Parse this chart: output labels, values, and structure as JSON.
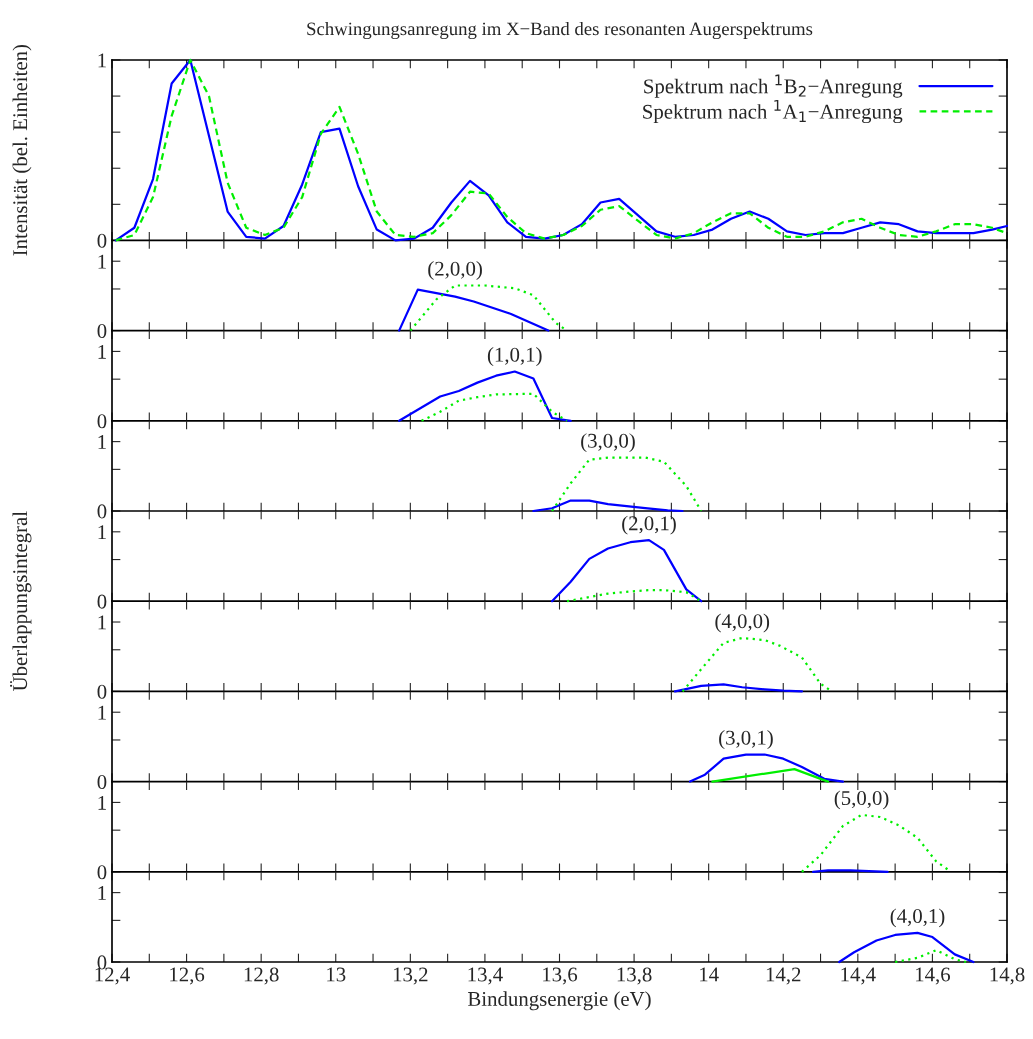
{
  "chart_data": [
    {
      "type": "line",
      "title": "Schwingungsanregung im X−Band des resonanten Augerspektrums",
      "ylabel": "Intensität (bel. Einheiten)",
      "xlim": [
        12.4,
        14.8
      ],
      "ylim": [
        0,
        1
      ],
      "tick_labels": "y",
      "legend": "top right",
      "xticks": [
        {
          "value": 12.4,
          "label": null
        },
        {
          "value": 12.5,
          "label": null
        },
        {
          "value": 12.6,
          "label": null
        },
        {
          "value": 12.7,
          "label": null
        },
        {
          "value": 12.8,
          "label": null
        },
        {
          "value": 12.9,
          "label": null
        },
        {
          "value": 13,
          "label": null
        },
        {
          "value": 13.1,
          "label": null
        },
        {
          "value": 13.2,
          "label": null
        },
        {
          "value": 13.3,
          "label": null
        },
        {
          "value": 13.4,
          "label": null
        },
        {
          "value": 13.5,
          "label": null
        },
        {
          "value": 13.6,
          "label": null
        },
        {
          "value": 13.7,
          "label": null
        },
        {
          "value": 13.8,
          "label": null
        },
        {
          "value": 13.9,
          "label": null
        },
        {
          "value": 14,
          "label": null
        },
        {
          "value": 14.1,
          "label": null
        },
        {
          "value": 14.2,
          "label": null
        },
        {
          "value": 14.3,
          "label": null
        },
        {
          "value": 14.4,
          "label": null
        },
        {
          "value": 14.5,
          "label": null
        },
        {
          "value": 14.6,
          "label": null
        },
        {
          "value": 14.7,
          "label": null
        },
        {
          "value": 14.8,
          "label": null
        }
      ],
      "yticks": [
        0,
        {
          "value": 0.2,
          "label": null
        },
        {
          "value": 0.4,
          "label": null
        },
        {
          "value": 0.6,
          "label": null
        },
        {
          "value": 0.8,
          "label": null
        },
        1
      ],
      "series": [
        {
          "name": "Spektrum nach $^{1}$B$_{2}$−Anregung",
          "color": "#0000ff",
          "line_style": "solid",
          "x": [
            12.41,
            12.46,
            12.51,
            12.56,
            12.61,
            12.66,
            12.71,
            12.76,
            12.81,
            12.86,
            12.91,
            12.96,
            13.01,
            13.06,
            13.11,
            13.16,
            13.21,
            13.26,
            13.31,
            13.36,
            13.41,
            13.46,
            13.51,
            13.56,
            13.61,
            13.66,
            13.71,
            13.76,
            13.81,
            13.86,
            13.91,
            13.96,
            14.01,
            14.06,
            14.11,
            14.16,
            14.21,
            14.26,
            14.31,
            14.36,
            14.41,
            14.46,
            14.51,
            14.56,
            14.61,
            14.66,
            14.71,
            14.76,
            14.8
          ],
          "values": [
            0,
            0.07,
            0.34,
            0.87,
            1.0,
            0.58,
            0.16,
            0.02,
            0.01,
            0.08,
            0.31,
            0.6,
            0.62,
            0.3,
            0.06,
            0,
            0.01,
            0.07,
            0.21,
            0.33,
            0.25,
            0.1,
            0.02,
            0.01,
            0.03,
            0.09,
            0.21,
            0.23,
            0.14,
            0.05,
            0.02,
            0.03,
            0.06,
            0.12,
            0.16,
            0.12,
            0.05,
            0.03,
            0.04,
            0.04,
            0.07,
            0.1,
            0.09,
            0.05,
            0.04,
            0.04,
            0.04,
            0.06,
            0.08
          ]
        },
        {
          "name": "Spektrum nach $^{1}$A$_{1}$−Anregung",
          "color": "#00ee00",
          "line_style": "dashed",
          "x": [
            12.41,
            12.46,
            12.51,
            12.56,
            12.61,
            12.66,
            12.71,
            12.76,
            12.81,
            12.86,
            12.91,
            12.96,
            13.01,
            13.06,
            13.11,
            13.16,
            13.21,
            13.26,
            13.31,
            13.36,
            13.41,
            13.46,
            13.51,
            13.56,
            13.61,
            13.66,
            13.71,
            13.76,
            13.81,
            13.86,
            13.91,
            13.96,
            14.01,
            14.06,
            14.11,
            14.16,
            14.21,
            14.26,
            14.31,
            14.36,
            14.41,
            14.46,
            14.51,
            14.56,
            14.61,
            14.66,
            14.71,
            14.76,
            14.8
          ],
          "values": [
            0,
            0.03,
            0.24,
            0.69,
            1.0,
            0.8,
            0.32,
            0.07,
            0.03,
            0.07,
            0.24,
            0.59,
            0.74,
            0.48,
            0.16,
            0.03,
            0.02,
            0.04,
            0.14,
            0.27,
            0.26,
            0.13,
            0.04,
            0.01,
            0.03,
            0.08,
            0.17,
            0.19,
            0.11,
            0.03,
            0.01,
            0.04,
            0.1,
            0.15,
            0.15,
            0.07,
            0.02,
            0.02,
            0.05,
            0.1,
            0.12,
            0.07,
            0.03,
            0.02,
            0.05,
            0.09,
            0.09,
            0.07,
            0.04
          ]
        }
      ]
    },
    {
      "type": "line",
      "xlim": [
        12.4,
        14.8
      ],
      "ylim": [
        0,
        1.3
      ],
      "tick_labels": "y",
      "xticks": [
        {
          "value": 12.4,
          "label": null
        },
        {
          "value": 12.5,
          "label": null
        },
        {
          "value": 12.6,
          "label": null
        },
        {
          "value": 12.7,
          "label": null
        },
        {
          "value": 12.8,
          "label": null
        },
        {
          "value": 12.9,
          "label": null
        },
        {
          "value": 13,
          "label": null
        },
        {
          "value": 13.1,
          "label": null
        },
        {
          "value": 13.2,
          "label": null
        },
        {
          "value": 13.3,
          "label": null
        },
        {
          "value": 13.4,
          "label": null
        },
        {
          "value": 13.5,
          "label": null
        },
        {
          "value": 13.6,
          "label": null
        },
        {
          "value": 13.7,
          "label": null
        },
        {
          "value": 13.8,
          "label": null
        },
        {
          "value": 13.9,
          "label": null
        },
        {
          "value": 14,
          "label": null
        },
        {
          "value": 14.1,
          "label": null
        },
        {
          "value": 14.2,
          "label": null
        },
        {
          "value": 14.3,
          "label": null
        },
        {
          "value": 14.4,
          "label": null
        },
        {
          "value": 14.5,
          "label": null
        },
        {
          "value": 14.6,
          "label": null
        },
        {
          "value": 14.7,
          "label": null
        },
        {
          "value": 14.8,
          "label": null
        }
      ],
      "yticks": [
        0,
        {
          "value": 0.6,
          "label": null
        },
        1
      ],
      "annotations": [
        "(2,0,0)"
      ],
      "series": [
        {
          "color": "#0000ff",
          "line_style": "solid",
          "x": [
            13.17,
            13.22,
            13.32,
            13.37,
            13.47,
            13.57
          ],
          "values": [
            0,
            0.59,
            0.49,
            0.42,
            0.24,
            0
          ]
        },
        {
          "color": "#00ee00",
          "line_style": "dotted",
          "x": [
            13.2,
            13.27,
            13.32,
            13.4,
            13.48,
            13.53,
            13.59,
            13.62
          ],
          "values": [
            0,
            0.45,
            0.65,
            0.65,
            0.61,
            0.51,
            0.11,
            0
          ]
        }
      ]
    },
    {
      "type": "line",
      "xlim": [
        12.4,
        14.8
      ],
      "ylim": [
        0,
        1.3
      ],
      "tick_labels": "y",
      "xticks": [
        {
          "value": 12.4,
          "label": null
        },
        {
          "value": 12.5,
          "label": null
        },
        {
          "value": 12.6,
          "label": null
        },
        {
          "value": 12.7,
          "label": null
        },
        {
          "value": 12.8,
          "label": null
        },
        {
          "value": 12.9,
          "label": null
        },
        {
          "value": 13,
          "label": null
        },
        {
          "value": 13.1,
          "label": null
        },
        {
          "value": 13.2,
          "label": null
        },
        {
          "value": 13.3,
          "label": null
        },
        {
          "value": 13.4,
          "label": null
        },
        {
          "value": 13.5,
          "label": null
        },
        {
          "value": 13.6,
          "label": null
        },
        {
          "value": 13.7,
          "label": null
        },
        {
          "value": 13.8,
          "label": null
        },
        {
          "value": 13.9,
          "label": null
        },
        {
          "value": 14,
          "label": null
        },
        {
          "value": 14.1,
          "label": null
        },
        {
          "value": 14.2,
          "label": null
        },
        {
          "value": 14.3,
          "label": null
        },
        {
          "value": 14.4,
          "label": null
        },
        {
          "value": 14.5,
          "label": null
        },
        {
          "value": 14.6,
          "label": null
        },
        {
          "value": 14.7,
          "label": null
        },
        {
          "value": 14.8,
          "label": null
        }
      ],
      "yticks": [
        0,
        {
          "value": 0.6,
          "label": null
        },
        1
      ],
      "annotations": [
        "(1,0,1)"
      ],
      "series": [
        {
          "color": "#0000ff",
          "line_style": "solid",
          "x": [
            13.17,
            13.28,
            13.33,
            13.38,
            13.43,
            13.48,
            13.53,
            13.58,
            13.63
          ],
          "values": [
            0,
            0.35,
            0.43,
            0.55,
            0.65,
            0.71,
            0.61,
            0.04,
            0
          ]
        },
        {
          "color": "#00ee00",
          "line_style": "dotted",
          "x": [
            13.23,
            13.28,
            13.33,
            13.38,
            13.43,
            13.53,
            13.58,
            13.62
          ],
          "values": [
            0,
            0.13,
            0.29,
            0.34,
            0.38,
            0.39,
            0.13,
            0
          ]
        }
      ]
    },
    {
      "type": "line",
      "xlim": [
        12.4,
        14.8
      ],
      "ylim": [
        0,
        1.3
      ],
      "tick_labels": "y",
      "xticks": [
        {
          "value": 12.4,
          "label": null
        },
        {
          "value": 12.5,
          "label": null
        },
        {
          "value": 12.6,
          "label": null
        },
        {
          "value": 12.7,
          "label": null
        },
        {
          "value": 12.8,
          "label": null
        },
        {
          "value": 12.9,
          "label": null
        },
        {
          "value": 13,
          "label": null
        },
        {
          "value": 13.1,
          "label": null
        },
        {
          "value": 13.2,
          "label": null
        },
        {
          "value": 13.3,
          "label": null
        },
        {
          "value": 13.4,
          "label": null
        },
        {
          "value": 13.5,
          "label": null
        },
        {
          "value": 13.6,
          "label": null
        },
        {
          "value": 13.7,
          "label": null
        },
        {
          "value": 13.8,
          "label": null
        },
        {
          "value": 13.9,
          "label": null
        },
        {
          "value": 14,
          "label": null
        },
        {
          "value": 14.1,
          "label": null
        },
        {
          "value": 14.2,
          "label": null
        },
        {
          "value": 14.3,
          "label": null
        },
        {
          "value": 14.4,
          "label": null
        },
        {
          "value": 14.5,
          "label": null
        },
        {
          "value": 14.6,
          "label": null
        },
        {
          "value": 14.7,
          "label": null
        },
        {
          "value": 14.8,
          "label": null
        }
      ],
      "yticks": [
        0,
        {
          "value": 0.6,
          "label": null
        },
        1
      ],
      "annotations": [
        "(3,0,0)"
      ],
      "series": [
        {
          "color": "#0000ff",
          "line_style": "solid",
          "x": [
            13.53,
            13.58,
            13.63,
            13.68,
            13.73,
            13.78,
            13.83,
            13.89,
            13.93
          ],
          "values": [
            0,
            0.04,
            0.15,
            0.15,
            0.1,
            0.07,
            0.04,
            0.01,
            0
          ]
        },
        {
          "color": "#00ee00",
          "line_style": "dotted",
          "x": [
            13.58,
            13.63,
            13.68,
            13.73,
            13.83,
            13.88,
            13.94,
            13.98
          ],
          "values": [
            0,
            0.4,
            0.74,
            0.77,
            0.77,
            0.71,
            0.36,
            0
          ]
        }
      ]
    },
    {
      "type": "line",
      "ylabel": "Überlappungsintegral",
      "xlim": [
        12.4,
        14.8
      ],
      "ylim": [
        0,
        1.3
      ],
      "tick_labels": "y",
      "xticks": [
        {
          "value": 12.4,
          "label": null
        },
        {
          "value": 12.5,
          "label": null
        },
        {
          "value": 12.6,
          "label": null
        },
        {
          "value": 12.7,
          "label": null
        },
        {
          "value": 12.8,
          "label": null
        },
        {
          "value": 12.9,
          "label": null
        },
        {
          "value": 13,
          "label": null
        },
        {
          "value": 13.1,
          "label": null
        },
        {
          "value": 13.2,
          "label": null
        },
        {
          "value": 13.3,
          "label": null
        },
        {
          "value": 13.4,
          "label": null
        },
        {
          "value": 13.5,
          "label": null
        },
        {
          "value": 13.6,
          "label": null
        },
        {
          "value": 13.7,
          "label": null
        },
        {
          "value": 13.8,
          "label": null
        },
        {
          "value": 13.9,
          "label": null
        },
        {
          "value": 14,
          "label": null
        },
        {
          "value": 14.1,
          "label": null
        },
        {
          "value": 14.2,
          "label": null
        },
        {
          "value": 14.3,
          "label": null
        },
        {
          "value": 14.4,
          "label": null
        },
        {
          "value": 14.5,
          "label": null
        },
        {
          "value": 14.6,
          "label": null
        },
        {
          "value": 14.7,
          "label": null
        },
        {
          "value": 14.8,
          "label": null
        }
      ],
      "yticks": [
        0,
        {
          "value": 0.6,
          "label": null
        },
        1
      ],
      "annotations": [
        "(2,0,1)"
      ],
      "series": [
        {
          "color": "#0000ff",
          "line_style": "solid",
          "x": [
            13.58,
            13.63,
            13.68,
            13.73,
            13.79,
            13.84,
            13.88,
            13.94,
            13.98
          ],
          "values": [
            0,
            0.28,
            0.61,
            0.76,
            0.85,
            0.88,
            0.74,
            0.17,
            0
          ]
        },
        {
          "color": "#00ee00",
          "line_style": "dotted",
          "x": [
            13.62,
            13.73,
            13.79,
            13.84,
            13.88,
            13.94,
            13.98
          ],
          "values": [
            0,
            0.11,
            0.14,
            0.16,
            0.16,
            0.13,
            0
          ]
        }
      ]
    },
    {
      "type": "line",
      "xlim": [
        12.4,
        14.8
      ],
      "ylim": [
        0,
        1.3
      ],
      "tick_labels": "y",
      "xticks": [
        {
          "value": 12.4,
          "label": null
        },
        {
          "value": 12.5,
          "label": null
        },
        {
          "value": 12.6,
          "label": null
        },
        {
          "value": 12.7,
          "label": null
        },
        {
          "value": 12.8,
          "label": null
        },
        {
          "value": 12.9,
          "label": null
        },
        {
          "value": 13,
          "label": null
        },
        {
          "value": 13.1,
          "label": null
        },
        {
          "value": 13.2,
          "label": null
        },
        {
          "value": 13.3,
          "label": null
        },
        {
          "value": 13.4,
          "label": null
        },
        {
          "value": 13.5,
          "label": null
        },
        {
          "value": 13.6,
          "label": null
        },
        {
          "value": 13.7,
          "label": null
        },
        {
          "value": 13.8,
          "label": null
        },
        {
          "value": 13.9,
          "label": null
        },
        {
          "value": 14,
          "label": null
        },
        {
          "value": 14.1,
          "label": null
        },
        {
          "value": 14.2,
          "label": null
        },
        {
          "value": 14.3,
          "label": null
        },
        {
          "value": 14.4,
          "label": null
        },
        {
          "value": 14.5,
          "label": null
        },
        {
          "value": 14.6,
          "label": null
        },
        {
          "value": 14.7,
          "label": null
        },
        {
          "value": 14.8,
          "label": null
        }
      ],
      "yticks": [
        0,
        {
          "value": 0.6,
          "label": null
        },
        1
      ],
      "annotations": [
        "(4,0,0)"
      ],
      "series": [
        {
          "color": "#0000ff",
          "line_style": "solid",
          "x": [
            13.91,
            13.98,
            14.04,
            14.09,
            14.15,
            14.2,
            14.25
          ],
          "values": [
            0,
            0.08,
            0.1,
            0.06,
            0.03,
            0.01,
            0
          ]
        },
        {
          "color": "#00ee00",
          "line_style": "dotted",
          "x": [
            13.93,
            13.98,
            14.04,
            14.09,
            14.15,
            14.19,
            14.25,
            14.3,
            14.33
          ],
          "values": [
            0,
            0.32,
            0.7,
            0.77,
            0.74,
            0.66,
            0.49,
            0.11,
            0
          ]
        }
      ]
    },
    {
      "type": "line",
      "xlim": [
        12.4,
        14.8
      ],
      "ylim": [
        0,
        1.3
      ],
      "tick_labels": "y",
      "xticks": [
        {
          "value": 12.4,
          "label": null
        },
        {
          "value": 12.5,
          "label": null
        },
        {
          "value": 12.6,
          "label": null
        },
        {
          "value": 12.7,
          "label": null
        },
        {
          "value": 12.8,
          "label": null
        },
        {
          "value": 12.9,
          "label": null
        },
        {
          "value": 13,
          "label": null
        },
        {
          "value": 13.1,
          "label": null
        },
        {
          "value": 13.2,
          "label": null
        },
        {
          "value": 13.3,
          "label": null
        },
        {
          "value": 13.4,
          "label": null
        },
        {
          "value": 13.5,
          "label": null
        },
        {
          "value": 13.6,
          "label": null
        },
        {
          "value": 13.7,
          "label": null
        },
        {
          "value": 13.8,
          "label": null
        },
        {
          "value": 13.9,
          "label": null
        },
        {
          "value": 14,
          "label": null
        },
        {
          "value": 14.1,
          "label": null
        },
        {
          "value": 14.2,
          "label": null
        },
        {
          "value": 14.3,
          "label": null
        },
        {
          "value": 14.4,
          "label": null
        },
        {
          "value": 14.5,
          "label": null
        },
        {
          "value": 14.6,
          "label": null
        },
        {
          "value": 14.7,
          "label": null
        },
        {
          "value": 14.8,
          "label": null
        }
      ],
      "yticks": [
        0,
        {
          "value": 0.6,
          "label": null
        },
        1
      ],
      "annotations": [
        "(3,0,1)"
      ],
      "series": [
        {
          "color": "#0000ff",
          "line_style": "solid",
          "x": [
            13.95,
            13.99,
            14.04,
            14.1,
            14.15,
            14.2,
            14.25,
            14.31,
            14.36
          ],
          "values": [
            0,
            0.1,
            0.33,
            0.39,
            0.39,
            0.33,
            0.21,
            0.04,
            0
          ]
        },
        {
          "color": "#00ee00",
          "line_style": "solid",
          "x": [
            14.01,
            14.23,
            14.32
          ],
          "values": [
            0,
            0.18,
            0
          ]
        }
      ]
    },
    {
      "type": "line",
      "xlim": [
        12.4,
        14.8
      ],
      "ylim": [
        0,
        1.3
      ],
      "tick_labels": "y",
      "xticks": [
        {
          "value": 12.4,
          "label": null
        },
        {
          "value": 12.5,
          "label": null
        },
        {
          "value": 12.6,
          "label": null
        },
        {
          "value": 12.7,
          "label": null
        },
        {
          "value": 12.8,
          "label": null
        },
        {
          "value": 12.9,
          "label": null
        },
        {
          "value": 13,
          "label": null
        },
        {
          "value": 13.1,
          "label": null
        },
        {
          "value": 13.2,
          "label": null
        },
        {
          "value": 13.3,
          "label": null
        },
        {
          "value": 13.4,
          "label": null
        },
        {
          "value": 13.5,
          "label": null
        },
        {
          "value": 13.6,
          "label": null
        },
        {
          "value": 13.7,
          "label": null
        },
        {
          "value": 13.8,
          "label": null
        },
        {
          "value": 13.9,
          "label": null
        },
        {
          "value": 14,
          "label": null
        },
        {
          "value": 14.1,
          "label": null
        },
        {
          "value": 14.2,
          "label": null
        },
        {
          "value": 14.3,
          "label": null
        },
        {
          "value": 14.4,
          "label": null
        },
        {
          "value": 14.5,
          "label": null
        },
        {
          "value": 14.6,
          "label": null
        },
        {
          "value": 14.7,
          "label": null
        },
        {
          "value": 14.8,
          "label": null
        }
      ],
      "yticks": [
        0,
        {
          "value": 0.6,
          "label": null
        },
        1
      ],
      "annotations": [
        "(5,0,0)"
      ],
      "series": [
        {
          "color": "#0000ff",
          "line_style": "solid",
          "x": [
            14.28,
            14.32,
            14.38,
            14.43,
            14.48
          ],
          "values": [
            0,
            0.02,
            0.02,
            0.01,
            0
          ]
        },
        {
          "color": "#00ee00",
          "line_style": "dotted",
          "x": [
            14.25,
            14.3,
            14.36,
            14.41,
            14.46,
            14.51,
            14.56,
            14.61,
            14.65
          ],
          "values": [
            0,
            0.24,
            0.66,
            0.82,
            0.79,
            0.67,
            0.49,
            0.15,
            0
          ]
        }
      ]
    },
    {
      "type": "line",
      "xlabel": "Bindungsenergie (eV)",
      "xlim": [
        12.4,
        14.8
      ],
      "ylim": [
        0,
        1.3
      ],
      "xticks": [
        {
          "value": 12.4,
          "label": "12,4"
        },
        {
          "value": 12.5,
          "label": null
        },
        {
          "value": 12.6,
          "label": "12,6"
        },
        {
          "value": 12.7,
          "label": null
        },
        {
          "value": 12.8,
          "label": "12,8"
        },
        {
          "value": 12.9,
          "label": null
        },
        13,
        {
          "value": 13.1,
          "label": null
        },
        {
          "value": 13.2,
          "label": "13,2"
        },
        {
          "value": 13.3,
          "label": null
        },
        {
          "value": 13.4,
          "label": "13,4"
        },
        {
          "value": 13.5,
          "label": null
        },
        {
          "value": 13.6,
          "label": "13,6"
        },
        {
          "value": 13.7,
          "label": null
        },
        {
          "value": 13.8,
          "label": "13,8"
        },
        {
          "value": 13.9,
          "label": null
        },
        14,
        {
          "value": 14.1,
          "label": null
        },
        {
          "value": 14.2,
          "label": "14,2"
        },
        {
          "value": 14.3,
          "label": null
        },
        {
          "value": 14.4,
          "label": "14,4"
        },
        {
          "value": 14.5,
          "label": null
        },
        {
          "value": 14.6,
          "label": "14,6"
        },
        {
          "value": 14.7,
          "label": null
        },
        {
          "value": 14.8,
          "label": "14,8"
        }
      ],
      "yticks": [
        0,
        {
          "value": 0.6,
          "label": null
        },
        1
      ],
      "annotations": [
        "(4,0,1)"
      ],
      "series": [
        {
          "color": "#0000ff",
          "line_style": "solid",
          "x": [
            14.35,
            14.39,
            14.45,
            14.5,
            14.56,
            14.6,
            14.66,
            14.71
          ],
          "values": [
            0,
            0.14,
            0.31,
            0.39,
            0.42,
            0.36,
            0.11,
            0
          ]
        },
        {
          "color": "#00ee00",
          "line_style": "dotted",
          "x": [
            14.5,
            14.56,
            14.61,
            14.66,
            14.69
          ],
          "values": [
            0,
            0.06,
            0.17,
            0.04,
            0
          ]
        }
      ]
    }
  ]
}
